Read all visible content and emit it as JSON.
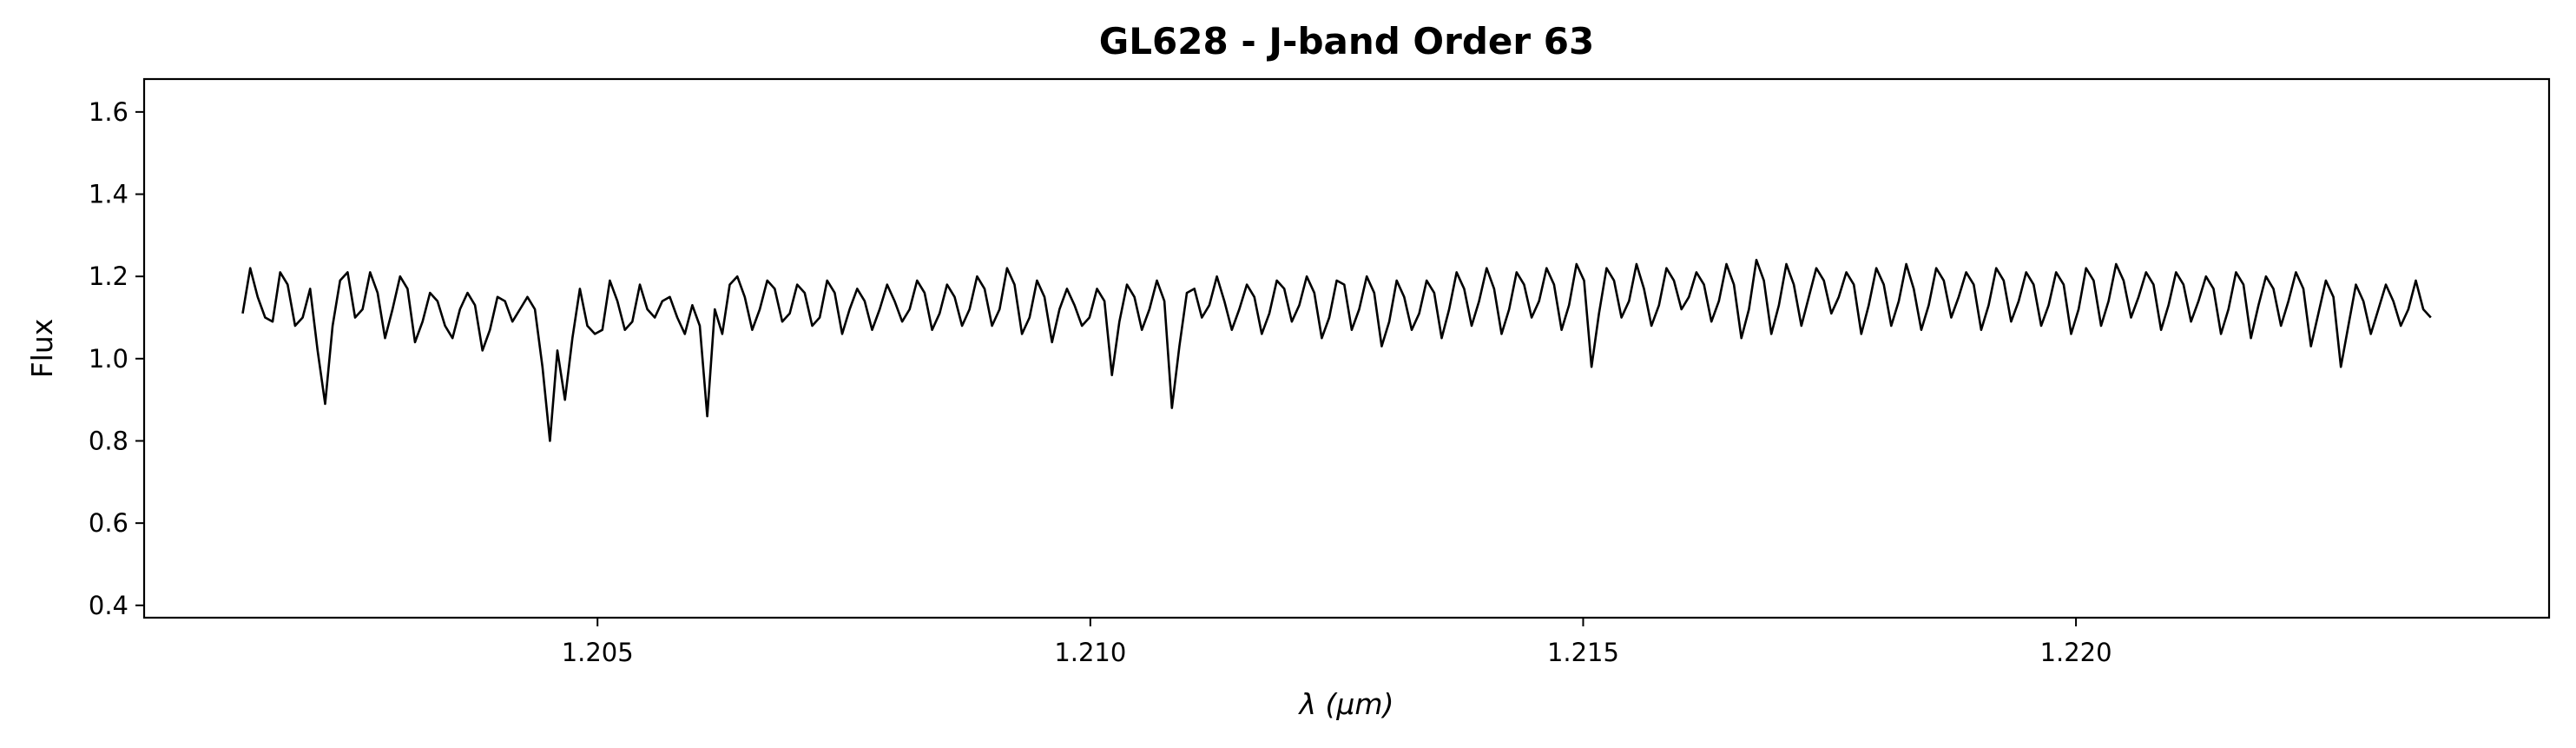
{
  "chart_data": {
    "type": "line",
    "title": "GL628 - J-band Order 63",
    "xlabel": "λ (μm)",
    "ylabel": "Flux",
    "xlim": [
      1.2004,
      1.2248
    ],
    "ylim": [
      0.37,
      1.68
    ],
    "xticks": [
      1.205,
      1.21,
      1.215,
      1.22
    ],
    "xtick_labels": [
      "1.205",
      "1.210",
      "1.215",
      "1.220"
    ],
    "yticks": [
      0.4,
      0.6,
      0.8,
      1.0,
      1.2,
      1.4,
      1.6
    ],
    "ytick_labels": [
      "0.4",
      "0.6",
      "0.8",
      "1.0",
      "1.2",
      "1.4",
      "1.6"
    ],
    "grid": false,
    "line_color": "#000000",
    "series": [
      {
        "x_start": 1.2014,
        "x_end": 1.2236,
        "values": [
          1.11,
          1.22,
          1.15,
          1.1,
          1.09,
          1.21,
          1.18,
          1.08,
          1.1,
          1.17,
          1.02,
          0.89,
          1.08,
          1.19,
          1.21,
          1.1,
          1.12,
          1.21,
          1.16,
          1.05,
          1.12,
          1.2,
          1.17,
          1.04,
          1.09,
          1.16,
          1.14,
          1.08,
          1.05,
          1.12,
          1.16,
          1.13,
          1.02,
          1.07,
          1.15,
          1.14,
          1.09,
          1.12,
          1.15,
          1.12,
          0.98,
          0.8,
          1.02,
          0.9,
          1.05,
          1.17,
          1.08,
          1.06,
          1.07,
          1.19,
          1.14,
          1.07,
          1.09,
          1.18,
          1.12,
          1.1,
          1.14,
          1.15,
          1.1,
          1.06,
          1.13,
          1.08,
          0.86,
          1.12,
          1.06,
          1.18,
          1.2,
          1.15,
          1.07,
          1.12,
          1.19,
          1.17,
          1.09,
          1.11,
          1.18,
          1.16,
          1.08,
          1.1,
          1.19,
          1.16,
          1.06,
          1.12,
          1.17,
          1.14,
          1.07,
          1.12,
          1.18,
          1.14,
          1.09,
          1.12,
          1.19,
          1.16,
          1.07,
          1.11,
          1.18,
          1.15,
          1.08,
          1.12,
          1.2,
          1.17,
          1.08,
          1.12,
          1.22,
          1.18,
          1.06,
          1.1,
          1.19,
          1.15,
          1.04,
          1.12,
          1.17,
          1.13,
          1.08,
          1.1,
          1.17,
          1.14,
          0.96,
          1.09,
          1.18,
          1.15,
          1.07,
          1.12,
          1.19,
          1.14,
          0.88,
          1.03,
          1.16,
          1.17,
          1.1,
          1.13,
          1.2,
          1.14,
          1.07,
          1.12,
          1.18,
          1.15,
          1.06,
          1.11,
          1.19,
          1.17,
          1.09,
          1.13,
          1.2,
          1.16,
          1.05,
          1.1,
          1.19,
          1.18,
          1.07,
          1.12,
          1.2,
          1.16,
          1.03,
          1.09,
          1.19,
          1.15,
          1.07,
          1.11,
          1.19,
          1.16,
          1.05,
          1.12,
          1.21,
          1.17,
          1.08,
          1.14,
          1.22,
          1.17,
          1.06,
          1.12,
          1.21,
          1.18,
          1.1,
          1.14,
          1.22,
          1.18,
          1.07,
          1.13,
          1.23,
          1.19,
          0.98,
          1.11,
          1.22,
          1.19,
          1.1,
          1.14,
          1.23,
          1.17,
          1.08,
          1.13,
          1.22,
          1.19,
          1.12,
          1.15,
          1.21,
          1.18,
          1.09,
          1.14,
          1.23,
          1.18,
          1.05,
          1.12,
          1.24,
          1.19,
          1.06,
          1.13,
          1.23,
          1.18,
          1.08,
          1.15,
          1.22,
          1.19,
          1.11,
          1.15,
          1.21,
          1.18,
          1.06,
          1.13,
          1.22,
          1.18,
          1.08,
          1.14,
          1.23,
          1.17,
          1.07,
          1.13,
          1.22,
          1.19,
          1.1,
          1.15,
          1.21,
          1.18,
          1.07,
          1.13,
          1.22,
          1.19,
          1.09,
          1.14,
          1.21,
          1.18,
          1.08,
          1.13,
          1.21,
          1.18,
          1.06,
          1.12,
          1.22,
          1.19,
          1.08,
          1.14,
          1.23,
          1.19,
          1.1,
          1.15,
          1.21,
          1.18,
          1.07,
          1.13,
          1.21,
          1.18,
          1.09,
          1.14,
          1.2,
          1.17,
          1.06,
          1.12,
          1.21,
          1.18,
          1.05,
          1.13,
          1.2,
          1.17,
          1.08,
          1.14,
          1.21,
          1.17,
          1.03,
          1.11,
          1.19,
          1.15,
          0.98,
          1.08,
          1.18,
          1.14,
          1.06,
          1.12,
          1.18,
          1.14,
          1.08,
          1.12,
          1.19,
          1.12,
          1.1
        ]
      }
    ]
  }
}
